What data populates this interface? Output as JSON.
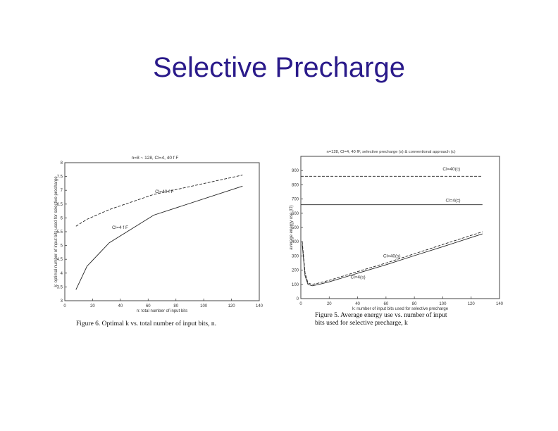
{
  "slide": {
    "title": "Selective Precharge"
  },
  "chart_data": [
    {
      "type": "line",
      "title": "n=8 ~ 128,  Cl=4, 40 f F",
      "xlabel": "n: total number of input bits",
      "ylabel": "k: optimal number of input bits used for selective precharge",
      "caption": "Figure 6.  Optimal k vs. total number of input bits, n.",
      "xlim": [
        0,
        140
      ],
      "ylim": [
        3,
        8
      ],
      "xticks": [
        0,
        20,
        40,
        60,
        80,
        100,
        120,
        140
      ],
      "yticks": [
        3,
        3.5,
        4,
        4.5,
        5,
        5.5,
        6,
        6.5,
        7,
        7.5,
        8
      ],
      "xtick_labels": [
        "0",
        "20",
        "40",
        "60",
        "80",
        "100",
        "120",
        "140"
      ],
      "ytick_labels": [
        "3",
        "3.5",
        "4",
        "4.5",
        "5",
        "5.5",
        "6",
        "6.5",
        "7",
        "7.5",
        "8"
      ],
      "series": [
        {
          "name": "Cl=40 f F",
          "style": "dashed",
          "x": [
            8,
            16,
            32,
            64,
            128
          ],
          "y": [
            5.7,
            5.95,
            6.3,
            6.85,
            7.55
          ]
        },
        {
          "name": "Cl=4 f F",
          "style": "solid",
          "x": [
            8,
            16,
            32,
            64,
            128
          ],
          "y": [
            3.4,
            4.25,
            5.1,
            6.1,
            7.15
          ]
        }
      ]
    },
    {
      "type": "line",
      "title": "n=128, Cl=4, 40 fF,    selective precharge (s) & conventional approach (c)",
      "xlabel": "k: number of input bits used for selective precharge",
      "ylabel": "average energy use (fJ)",
      "caption_lines": [
        "Figure 5.  Average energy use vs. number of input",
        "bits used for selective precharge, k"
      ],
      "xlim": [
        0,
        140
      ],
      "ylim": [
        0,
        1000
      ],
      "xticks": [
        0,
        20,
        40,
        60,
        80,
        100,
        120,
        140
      ],
      "yticks": [
        0,
        100,
        200,
        300,
        400,
        500,
        600,
        700,
        800,
        900
      ],
      "xtick_labels": [
        "0",
        "20",
        "40",
        "60",
        "80",
        "100",
        "120",
        "140"
      ],
      "ytick_labels": [
        "0",
        "100",
        "200",
        "300",
        "400",
        "500",
        "600",
        "700",
        "800",
        "900"
      ],
      "series": [
        {
          "name": "Cl=40(c)",
          "style": "dashed",
          "x": [
            0,
            128
          ],
          "y": [
            860,
            860
          ]
        },
        {
          "name": "Cl=4(c)",
          "style": "solid",
          "x": [
            0,
            128
          ],
          "y": [
            660,
            660
          ]
        },
        {
          "name": "Cl=40(s)",
          "style": "dashed",
          "x": [
            1,
            3,
            5,
            8,
            12,
            20,
            40,
            60,
            80,
            100,
            128
          ],
          "y": [
            400,
            180,
            110,
            100,
            108,
            128,
            190,
            250,
            315,
            380,
            470
          ]
        },
        {
          "name": "Cl=4(s)",
          "style": "solid",
          "x": [
            1,
            3,
            5,
            8,
            12,
            20,
            40,
            60,
            80,
            100,
            128
          ],
          "y": [
            380,
            160,
            100,
            90,
            98,
            118,
            178,
            238,
            302,
            365,
            455
          ]
        }
      ]
    }
  ]
}
